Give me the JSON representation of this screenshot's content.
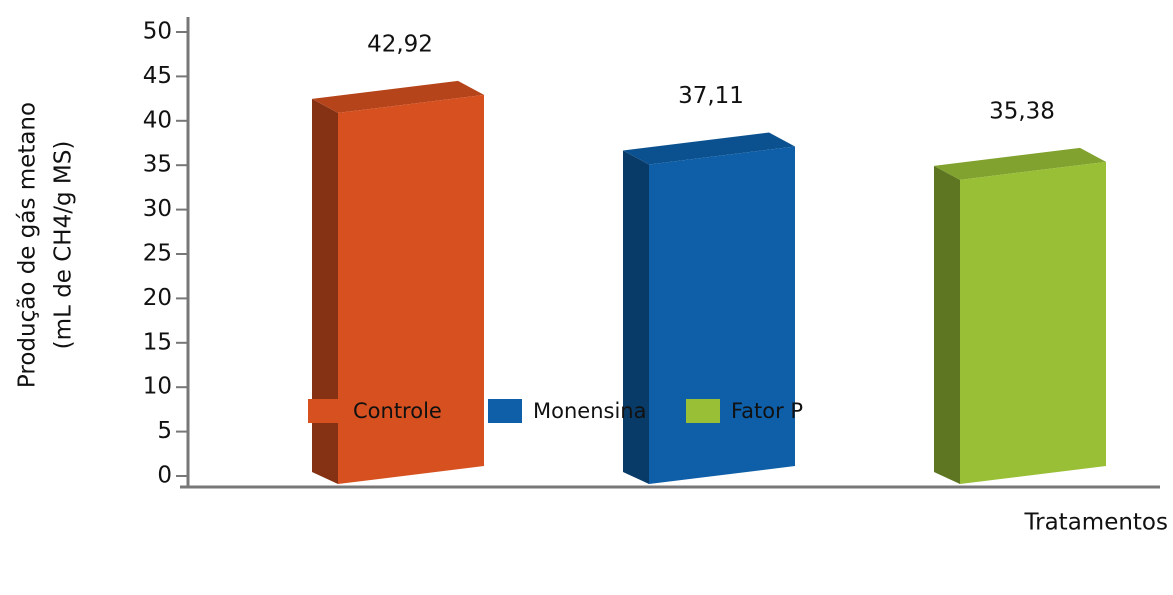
{
  "chart_data": {
    "type": "bar3d",
    "ylabel": [
      "Produção de gás metano",
      "(mL de CH4/g MS)"
    ],
    "xlabel": "Tratamentos",
    "categories": [
      "Controle",
      "Monensina",
      "Fator P"
    ],
    "values": [
      42.92,
      37.11,
      35.38
    ],
    "value_labels": [
      "42,92",
      "37,11",
      "35,38"
    ],
    "colors": [
      "#d65020",
      "#0e5fa8",
      "#98bf36"
    ],
    "ylim": [
      0,
      50
    ],
    "yticks": [
      0,
      5,
      10,
      15,
      20,
      25,
      30,
      35,
      40,
      45,
      50
    ]
  }
}
